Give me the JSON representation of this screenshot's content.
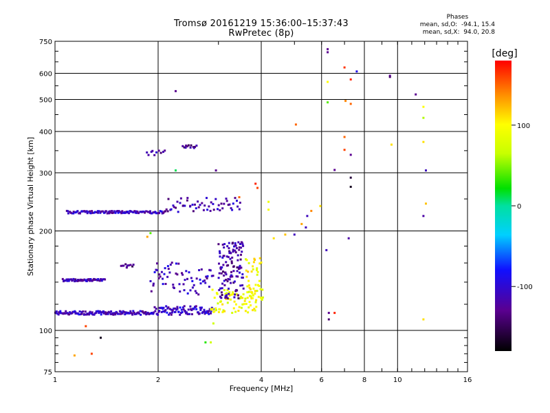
{
  "chart_data": {
    "type": "scatter",
    "title": "Tromsø 20161219 15:36:00–15:37:43",
    "subtitle": "RwPretec (8p)",
    "xlabel": "Frequency [MHz]",
    "ylabel": "Stationary phase Virtual Height [km]",
    "x_scale": "log",
    "y_scale": "log",
    "xlim": [
      1,
      16
    ],
    "ylim": [
      75,
      750
    ],
    "x_ticks": [
      1,
      2,
      4,
      6,
      8,
      10,
      16
    ],
    "x_tick_labels": [
      "1",
      "2",
      "4",
      "6",
      "8",
      "10",
      "16"
    ],
    "y_ticks": [
      75,
      100,
      200,
      300,
      400,
      500,
      600,
      750
    ],
    "y_tick_labels": [
      "75",
      "100",
      "200",
      "300",
      "400",
      "500",
      "600",
      "750"
    ],
    "grid": true,
    "colorbar": {
      "label": "[deg]",
      "range": [
        -180,
        180
      ],
      "ticks": [
        100,
        0,
        -100
      ],
      "tick_labels": [
        "100",
        "0",
        "-100"
      ]
    },
    "stats": {
      "heading": "Phases",
      "line_o": "mean, sd,O:  -94.1, 15.4",
      "line_x": "mean, sd,X:  94.0, 20.8"
    },
    "traces": [
      {
        "x_range": [
          1.0,
          1.95
        ],
        "y": 113,
        "n": 130,
        "phase": -110,
        "jitter": 1.5
      },
      {
        "x_range": [
          1.95,
          2.9
        ],
        "y": 115,
        "n": 90,
        "phase": -105,
        "jitter": 3.5
      },
      {
        "x_range": [
          1.05,
          1.4
        ],
        "y": 142,
        "n": 55,
        "phase": -115,
        "jitter": 1.2
      },
      {
        "x_range": [
          1.08,
          2.1
        ],
        "y": 228,
        "n": 110,
        "phase": -110,
        "jitter": 2.0
      },
      {
        "x_range": [
          2.1,
          3.5
        ],
        "y": 240,
        "n": 55,
        "phase": -115,
        "jitter": 12
      },
      {
        "x_range": [
          2.85,
          3.9
        ],
        "y": 123,
        "n": 75,
        "phase": 90,
        "jitter": 10
      },
      {
        "x_range": [
          3.6,
          4.05
        ],
        "y": 145,
        "n": 45,
        "phase": 95,
        "jitter": 22
      },
      {
        "x_range": [
          3.0,
          3.55
        ],
        "y": 155,
        "n": 120,
        "phase": -120,
        "jitter": 30
      },
      {
        "x_range": [
          2.3,
          2.9
        ],
        "y": 140,
        "n": 35,
        "phase": -110,
        "jitter": 14
      },
      {
        "x_range": [
          1.9,
          2.3
        ],
        "y": 145,
        "n": 30,
        "phase": -110,
        "jitter": 16
      },
      {
        "x_range": [
          1.55,
          1.7
        ],
        "y": 157,
        "n": 10,
        "phase": -130,
        "jitter": 2
      },
      {
        "x_range": [
          1.85,
          2.1
        ],
        "y": 345,
        "n": 10,
        "phase": -120,
        "jitter": 6
      },
      {
        "x_range": [
          2.35,
          2.6
        ],
        "y": 360,
        "n": 12,
        "phase": -130,
        "jitter": 4
      }
    ],
    "points": [
      {
        "x": 1.23,
        "y": 103,
        "phase": 160
      },
      {
        "x": 1.28,
        "y": 85,
        "phase": 160
      },
      {
        "x": 1.14,
        "y": 84,
        "phase": 130
      },
      {
        "x": 1.36,
        "y": 95,
        "phase": -170
      },
      {
        "x": 1.62,
        "y": 155,
        "phase": -130
      },
      {
        "x": 1.86,
        "y": 192,
        "phase": 130
      },
      {
        "x": 1.9,
        "y": 197,
        "phase": 40
      },
      {
        "x": 2.25,
        "y": 530,
        "phase": -130
      },
      {
        "x": 2.25,
        "y": 305,
        "phase": 10
      },
      {
        "x": 2.95,
        "y": 305,
        "phase": -130
      },
      {
        "x": 2.75,
        "y": 92,
        "phase": 30
      },
      {
        "x": 2.85,
        "y": 92,
        "phase": 70
      },
      {
        "x": 2.9,
        "y": 105,
        "phase": 70
      },
      {
        "x": 3.9,
        "y": 270,
        "phase": 160
      },
      {
        "x": 3.85,
        "y": 278,
        "phase": 170
      },
      {
        "x": 3.45,
        "y": 253,
        "phase": 150
      },
      {
        "x": 4.2,
        "y": 245,
        "phase": 90
      },
      {
        "x": 4.2,
        "y": 232,
        "phase": 95
      },
      {
        "x": 4.35,
        "y": 190,
        "phase": 110
      },
      {
        "x": 4.7,
        "y": 195,
        "phase": 120
      },
      {
        "x": 5.05,
        "y": 420,
        "phase": 150
      },
      {
        "x": 5.0,
        "y": 195,
        "phase": -110
      },
      {
        "x": 5.25,
        "y": 210,
        "phase": 130
      },
      {
        "x": 5.4,
        "y": 205,
        "phase": -110
      },
      {
        "x": 5.45,
        "y": 222,
        "phase": -110
      },
      {
        "x": 5.6,
        "y": 230,
        "phase": 140
      },
      {
        "x": 5.95,
        "y": 238,
        "phase": 110
      },
      {
        "x": 6.25,
        "y": 710,
        "phase": -130
      },
      {
        "x": 6.25,
        "y": 695,
        "phase": -130
      },
      {
        "x": 6.25,
        "y": 565,
        "phase": 100
      },
      {
        "x": 6.25,
        "y": 490,
        "phase": 40
      },
      {
        "x": 6.2,
        "y": 175,
        "phase": -110
      },
      {
        "x": 6.3,
        "y": 113,
        "phase": -130
      },
      {
        "x": 6.3,
        "y": 108,
        "phase": -140
      },
      {
        "x": 6.55,
        "y": 113,
        "phase": 170
      },
      {
        "x": 6.55,
        "y": 306,
        "phase": -130
      },
      {
        "x": 7.0,
        "y": 625,
        "phase": 165
      },
      {
        "x": 7.0,
        "y": 385,
        "phase": 150
      },
      {
        "x": 7.0,
        "y": 352,
        "phase": 160
      },
      {
        "x": 7.05,
        "y": 495,
        "phase": 140
      },
      {
        "x": 7.3,
        "y": 575,
        "phase": 170
      },
      {
        "x": 7.3,
        "y": 485,
        "phase": 150
      },
      {
        "x": 7.3,
        "y": 290,
        "phase": -160
      },
      {
        "x": 7.3,
        "y": 272,
        "phase": -170
      },
      {
        "x": 7.2,
        "y": 190,
        "phase": -120
      },
      {
        "x": 7.3,
        "y": 340,
        "phase": -130
      },
      {
        "x": 7.6,
        "y": 608,
        "phase": -90
      },
      {
        "x": 9.5,
        "y": 590,
        "phase": -130
      },
      {
        "x": 9.5,
        "y": 585,
        "phase": -140
      },
      {
        "x": 9.6,
        "y": 365,
        "phase": 110
      },
      {
        "x": 11.3,
        "y": 518,
        "phase": -130
      },
      {
        "x": 11.9,
        "y": 475,
        "phase": 100
      },
      {
        "x": 11.9,
        "y": 440,
        "phase": 60
      },
      {
        "x": 11.9,
        "y": 372,
        "phase": 110
      },
      {
        "x": 12.1,
        "y": 305,
        "phase": -110
      },
      {
        "x": 12.1,
        "y": 242,
        "phase": 120
      },
      {
        "x": 11.9,
        "y": 222,
        "phase": -120
      },
      {
        "x": 11.9,
        "y": 108,
        "phase": 110
      }
    ]
  }
}
